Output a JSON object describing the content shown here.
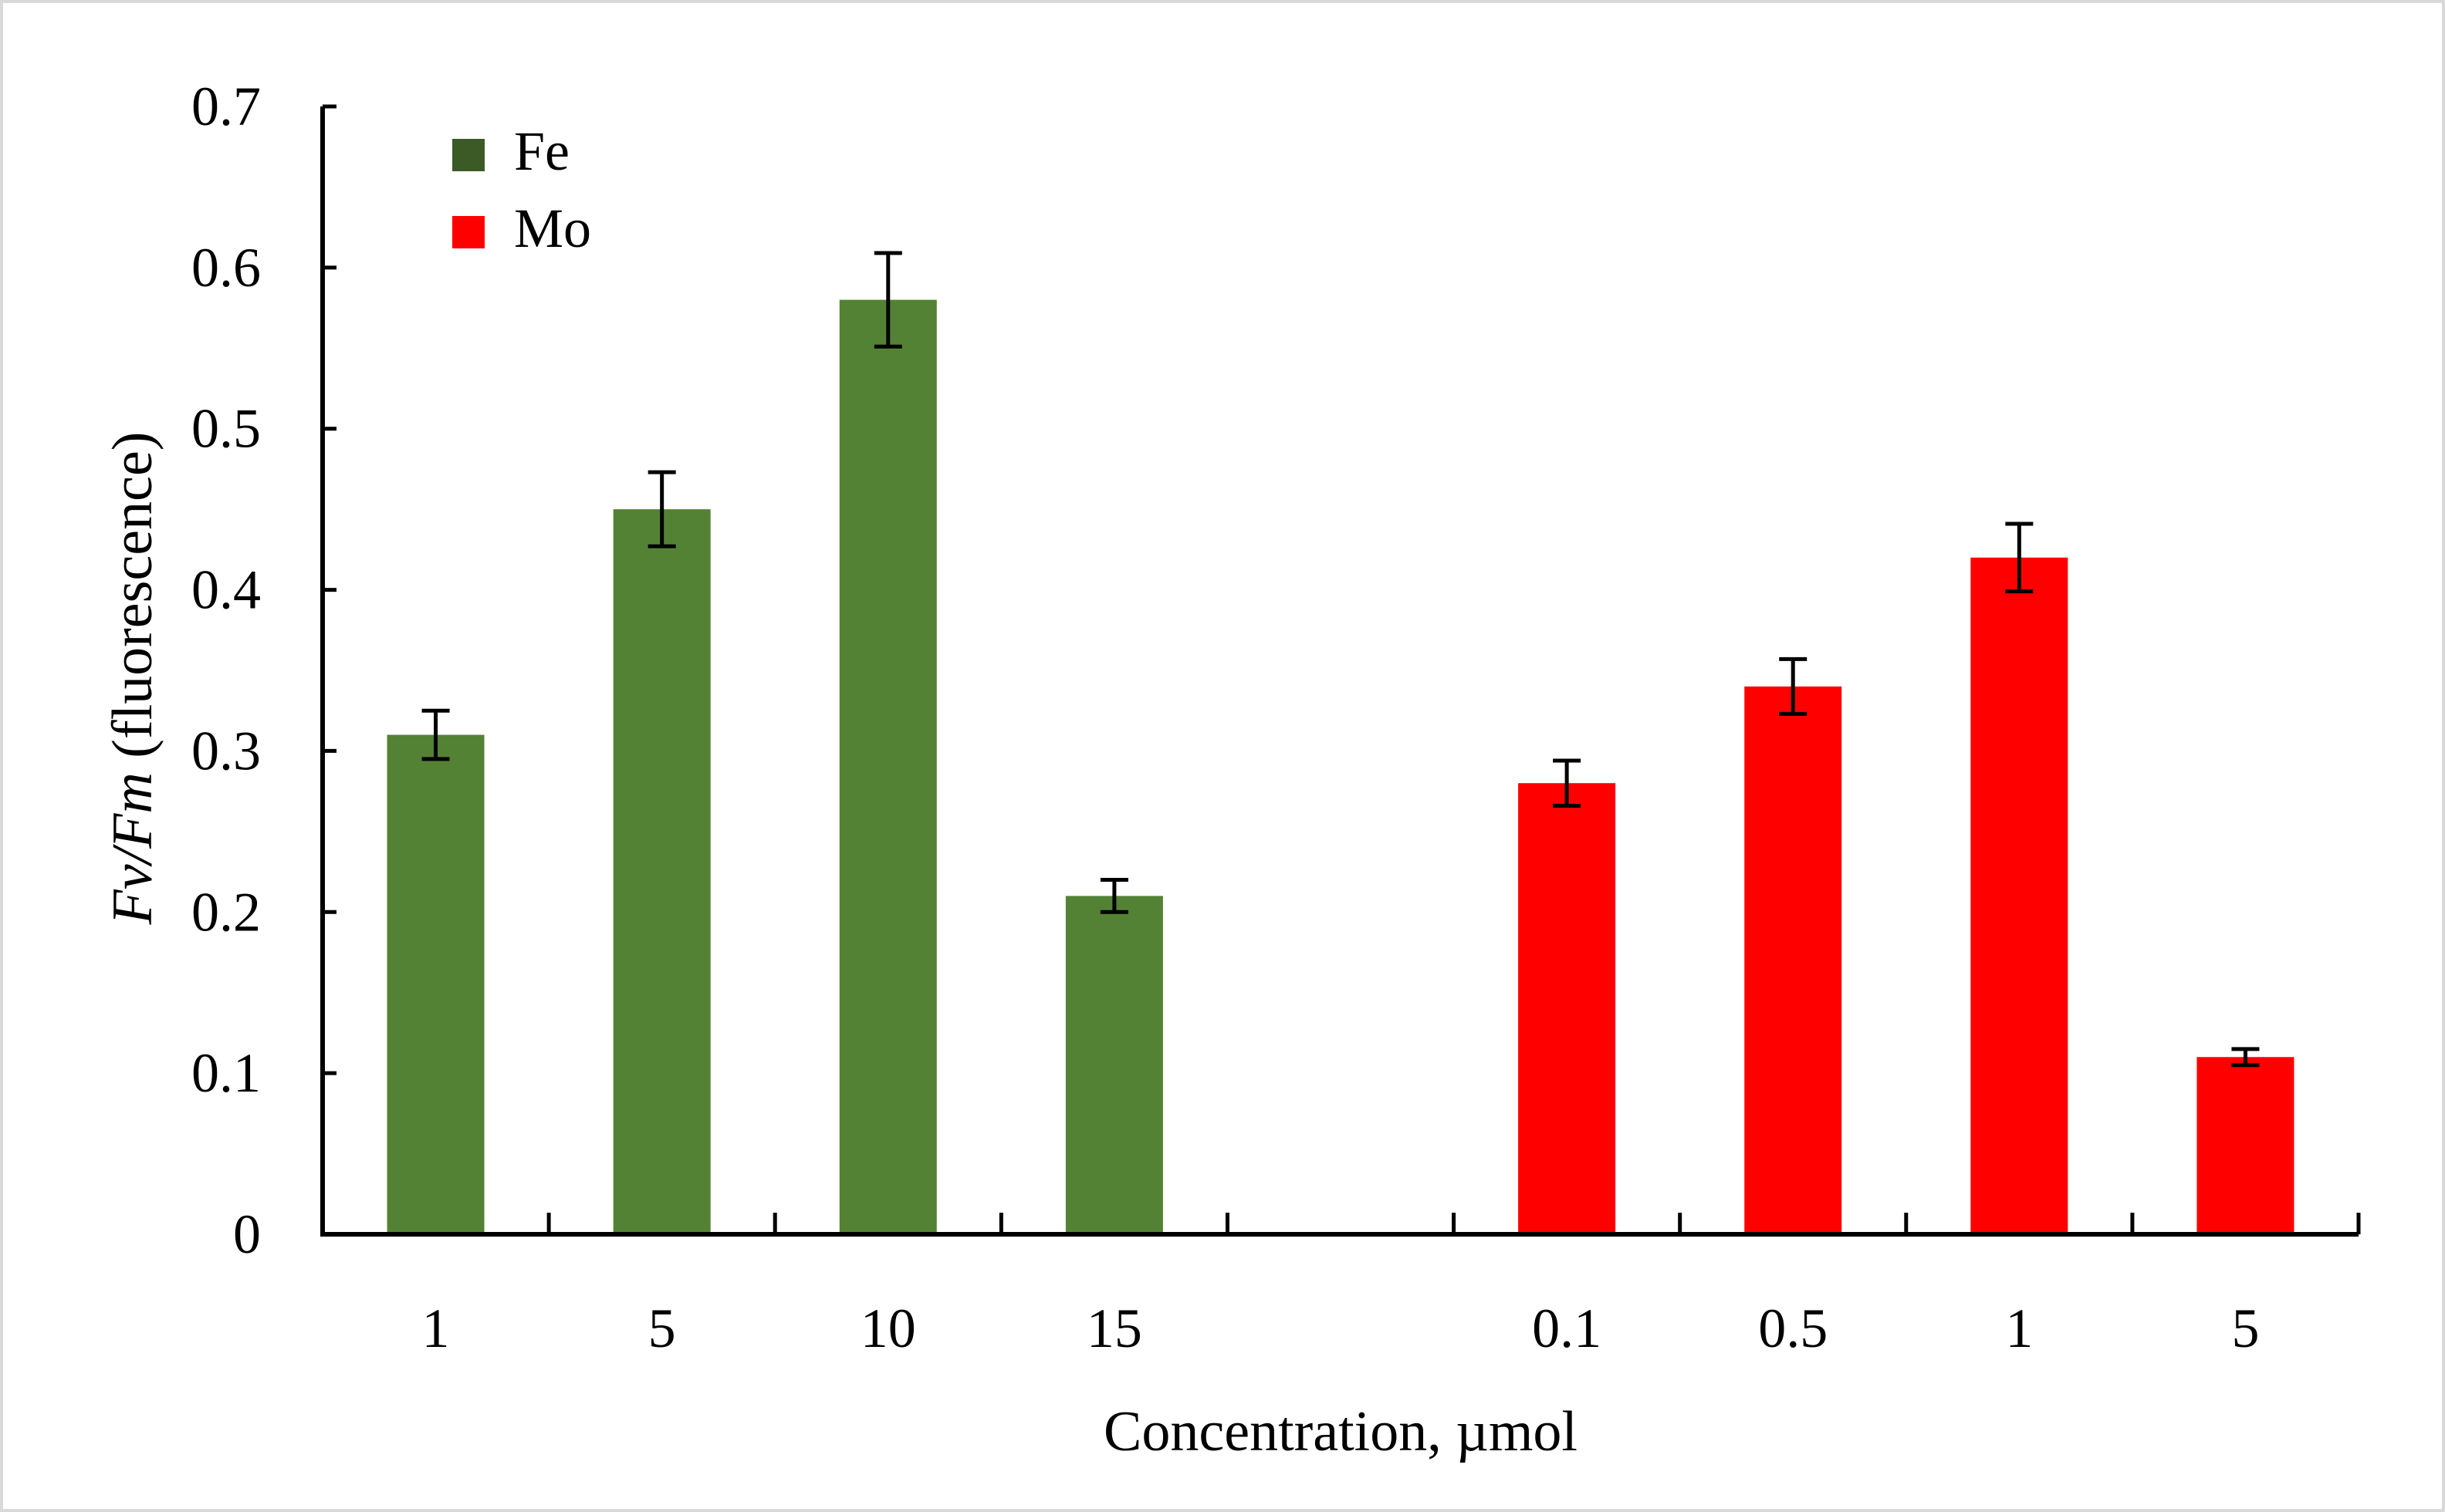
{
  "chart_data": {
    "type": "bar",
    "title": "",
    "xlabel": "Concentration, µmol",
    "ylabel_italic_part": "Fv/Fm",
    "ylabel_rest": " (fluorescence)",
    "ylim": [
      0,
      0.7
    ],
    "yticks": [
      "0",
      "0.1",
      "0.2",
      "0.3",
      "0.4",
      "0.5",
      "0.6",
      "0.7"
    ],
    "ytick_values": [
      0,
      0.1,
      0.2,
      0.3,
      0.4,
      0.5,
      0.6,
      0.7
    ],
    "legend_position": "top-left",
    "slots": 9,
    "series": [
      {
        "name": "Fe",
        "color": "#548235",
        "legend_color": "#3b5a26",
        "slot_start": 0,
        "categories": [
          "1",
          "5",
          "10",
          "15"
        ],
        "values": [
          0.31,
          0.45,
          0.58,
          0.21
        ],
        "errors": [
          0.015,
          0.023,
          0.029,
          0.01
        ]
      },
      {
        "name": "Mo",
        "color": "#ff0000",
        "legend_color": "#ff0000",
        "slot_start": 5,
        "categories": [
          "0.1",
          "0.5",
          "1",
          "5"
        ],
        "values": [
          0.28,
          0.34,
          0.42,
          0.11
        ],
        "errors": [
          0.014,
          0.017,
          0.021,
          0.005
        ]
      }
    ]
  }
}
